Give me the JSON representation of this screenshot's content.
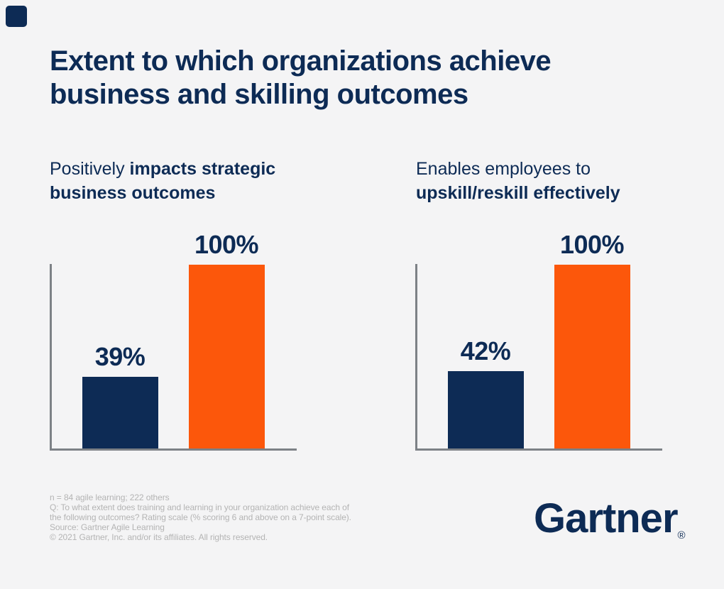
{
  "colors": {
    "navy": "#0d2b55",
    "orange": "#fc570b",
    "axis": "#7d8186",
    "footnote": "#b4b4b4",
    "background": "#f4f4f5"
  },
  "title": {
    "line1": "Extent to which organizations achieve",
    "line2": "business and skilling outcomes"
  },
  "panels": [
    {
      "subtitle": {
        "line1_regular": "Positively ",
        "line1_bold": "impacts strategic",
        "line2_regular": "",
        "line2_bold": "business outcomes"
      },
      "bars": [
        {
          "label": "39%",
          "value": 39,
          "color_key": "navy"
        },
        {
          "label": "100%",
          "value": 100,
          "color_key": "orange"
        }
      ]
    },
    {
      "subtitle": {
        "line1_regular": "Enables employees to",
        "line1_bold": "",
        "line2_regular": "",
        "line2_bold": "upskill/reskill effectively"
      },
      "bars": [
        {
          "label": "42%",
          "value": 42,
          "color_key": "navy"
        },
        {
          "label": "100%",
          "value": 100,
          "color_key": "orange"
        }
      ]
    }
  ],
  "chart_data": [
    {
      "type": "bar",
      "title": "Positively impacts strategic business outcomes",
      "categories": [
        "",
        ""
      ],
      "values": [
        39,
        100
      ],
      "data_labels": [
        "39%",
        "100%"
      ],
      "bar_colors": [
        "#0d2b55",
        "#fc570b"
      ],
      "xlabel": "",
      "ylabel": "",
      "ylim": [
        0,
        100
      ],
      "grid": false,
      "legend": false,
      "tick_labels": false,
      "axes_shown": [
        "left",
        "bottom"
      ]
    },
    {
      "type": "bar",
      "title": "Enables employees to upskill/reskill effectively",
      "categories": [
        "",
        ""
      ],
      "values": [
        42,
        100
      ],
      "data_labels": [
        "42%",
        "100%"
      ],
      "bar_colors": [
        "#0d2b55",
        "#fc570b"
      ],
      "xlabel": "",
      "ylabel": "",
      "ylim": [
        0,
        100
      ],
      "grid": false,
      "legend": false,
      "tick_labels": false,
      "axes_shown": [
        "left",
        "bottom"
      ]
    }
  ],
  "footnotes": [
    "n = 84 agile learning; 222 others",
    "Q: To what extent does training and learning in your organization achieve each of",
    "the following outcomes? Rating scale (% scoring 6 and above on a 7-point scale).",
    "Source: Gartner Agile Learning",
    "© 2021 Gartner, Inc. and/or its affiliates. All rights reserved."
  ],
  "logo": {
    "text": "Gartner",
    "registered": "®"
  }
}
